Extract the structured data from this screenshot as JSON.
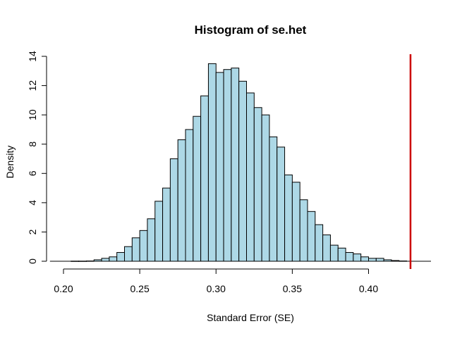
{
  "chart_data": {
    "type": "bar",
    "subtype": "histogram",
    "title": "Histogram of se.het",
    "xlabel": "Standard Error (SE)",
    "ylabel": "Density",
    "xlim": [
      0.2,
      0.44
    ],
    "ylim": [
      0,
      14
    ],
    "x_ticks": [
      "0.20",
      "0.25",
      "0.30",
      "0.35",
      "0.40"
    ],
    "x_tick_values": [
      0.2,
      0.25,
      0.3,
      0.35,
      0.4
    ],
    "y_ticks": [
      "0",
      "2",
      "4",
      "6",
      "8",
      "10",
      "12",
      "14"
    ],
    "y_tick_values": [
      0,
      2,
      4,
      6,
      8,
      10,
      12,
      14
    ],
    "bin_width": 0.005,
    "bins_start": [
      0.205,
      0.21,
      0.215,
      0.22,
      0.225,
      0.23,
      0.235,
      0.24,
      0.245,
      0.25,
      0.255,
      0.26,
      0.265,
      0.27,
      0.275,
      0.28,
      0.285,
      0.29,
      0.295,
      0.3,
      0.305,
      0.31,
      0.315,
      0.32,
      0.325,
      0.33,
      0.335,
      0.34,
      0.345,
      0.35,
      0.355,
      0.36,
      0.365,
      0.37,
      0.375,
      0.38,
      0.385,
      0.39,
      0.395,
      0.4,
      0.405,
      0.41,
      0.415,
      0.42
    ],
    "values": [
      0.01,
      0.01,
      0.02,
      0.1,
      0.2,
      0.3,
      0.6,
      1.0,
      1.6,
      2.1,
      2.9,
      4.1,
      5.0,
      7.0,
      8.3,
      9.0,
      9.9,
      11.3,
      13.5,
      12.9,
      13.1,
      13.2,
      12.3,
      11.5,
      10.5,
      10.0,
      8.5,
      7.8,
      5.9,
      5.4,
      4.2,
      3.4,
      2.5,
      1.8,
      1.1,
      0.9,
      0.6,
      0.5,
      0.3,
      0.2,
      0.2,
      0.1,
      0.05,
      0.02
    ],
    "reference_line": {
      "x": 0.4275,
      "color": "#cc0000"
    },
    "bar_color": "#add8e6",
    "bar_edge_color": "#000000",
    "grid": false
  }
}
